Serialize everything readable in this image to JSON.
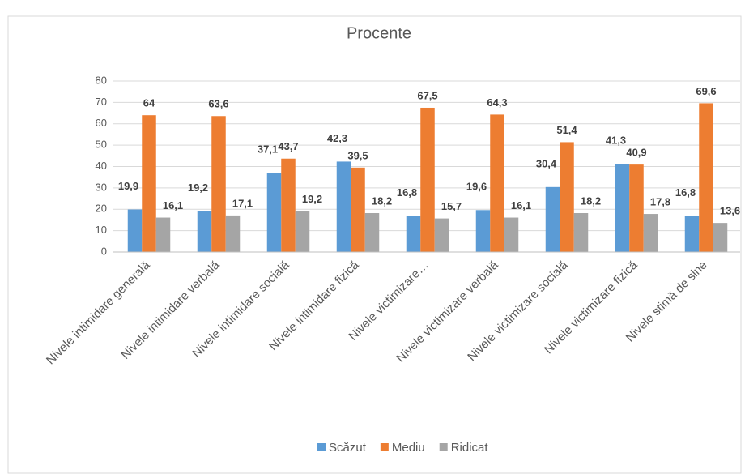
{
  "chart_data": {
    "type": "bar",
    "title": "Procente",
    "categories": [
      "Nivele intimidare generală",
      "Nivele intimidare verbală",
      "Nivele intimidare socială",
      "Nivele intimidare fizică",
      "Nivele victimizare…",
      "Nivele victimizare verbală",
      "Nivele victimizare socială",
      "Nivele victimizare fizică",
      "Nivele stimă de sine"
    ],
    "series": [
      {
        "name": "Scăzut",
        "color": "#5b9bd5",
        "values": [
          19.9,
          19.2,
          37.1,
          42.3,
          16.8,
          19.6,
          30.4,
          41.3,
          16.8
        ],
        "value_labels": [
          "19,9",
          "19,2",
          "37,1",
          "42,3",
          "16,8",
          "19,6",
          "30,4",
          "41,3",
          "16,8"
        ]
      },
      {
        "name": "Mediu",
        "color": "#ed7d31",
        "values": [
          64,
          63.6,
          43.7,
          39.5,
          67.5,
          64.3,
          51.4,
          40.9,
          69.6
        ],
        "value_labels": [
          "64",
          "63,6",
          "43,7",
          "39,5",
          "67,5",
          "64,3",
          "51,4",
          "40,9",
          "69,6"
        ]
      },
      {
        "name": "Ridicat",
        "color": "#a5a5a5",
        "values": [
          16.1,
          17.1,
          19.2,
          18.2,
          15.7,
          16.1,
          18.2,
          17.8,
          13.6
        ],
        "value_labels": [
          "16,1",
          "17,1",
          "19,2",
          "18,2",
          "15,7",
          "16,1",
          "18,2",
          "17,8",
          "13,6"
        ]
      }
    ],
    "ylim": [
      0,
      80
    ],
    "yticks": [
      0,
      10,
      20,
      30,
      40,
      50,
      60,
      70,
      80
    ],
    "grid": true,
    "legend": "bottom"
  }
}
